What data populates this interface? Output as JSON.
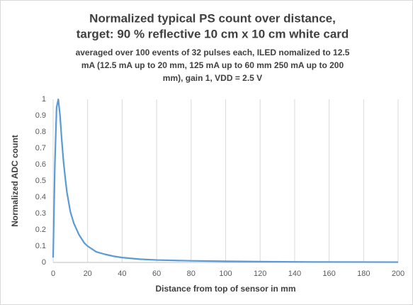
{
  "chart_data": {
    "type": "line",
    "title": [
      "Normalized typical PS count over distance,",
      "target: 90 % reflective 10 cm x 10 cm white card"
    ],
    "subtitle": [
      "averaged over 100 events of 32 pulses each, ILED nomalized to 12.5",
      "mA (12.5 mA up to 20 mm, 125 mA up to 60 mm 250 mA up to 200",
      "mm),  gain 1,  VDD = 2.5 V"
    ],
    "x_label": "Distance from top of sensor in mm",
    "y_label": "Normalized ADC count",
    "x": [
      0,
      1,
      2,
      3,
      4,
      5,
      6,
      7,
      8,
      10,
      12,
      15,
      18,
      20,
      25,
      30,
      35,
      40,
      50,
      60,
      80,
      100,
      120,
      150,
      200
    ],
    "series": [
      {
        "color": "#5b9bd5",
        "values": [
          0.03,
          0.6,
          0.95,
          1,
          0.9,
          0.75,
          0.62,
          0.52,
          0.43,
          0.31,
          0.24,
          0.17,
          0.12,
          0.1,
          0.065,
          0.05,
          0.038,
          0.03,
          0.02,
          0.015,
          0.01,
          0.007,
          0.005,
          0.003,
          0.002
        ]
      }
    ],
    "xlim": [
      0,
      200
    ],
    "xticks": [
      0,
      20,
      40,
      60,
      80,
      100,
      120,
      140,
      160,
      180,
      200
    ],
    "ylim": [
      0,
      1
    ],
    "yticks": [
      0,
      0.1,
      0.2,
      0.3,
      0.4,
      0.5,
      0.6,
      0.7,
      0.8,
      0.9,
      1
    ],
    "grid": "x"
  }
}
